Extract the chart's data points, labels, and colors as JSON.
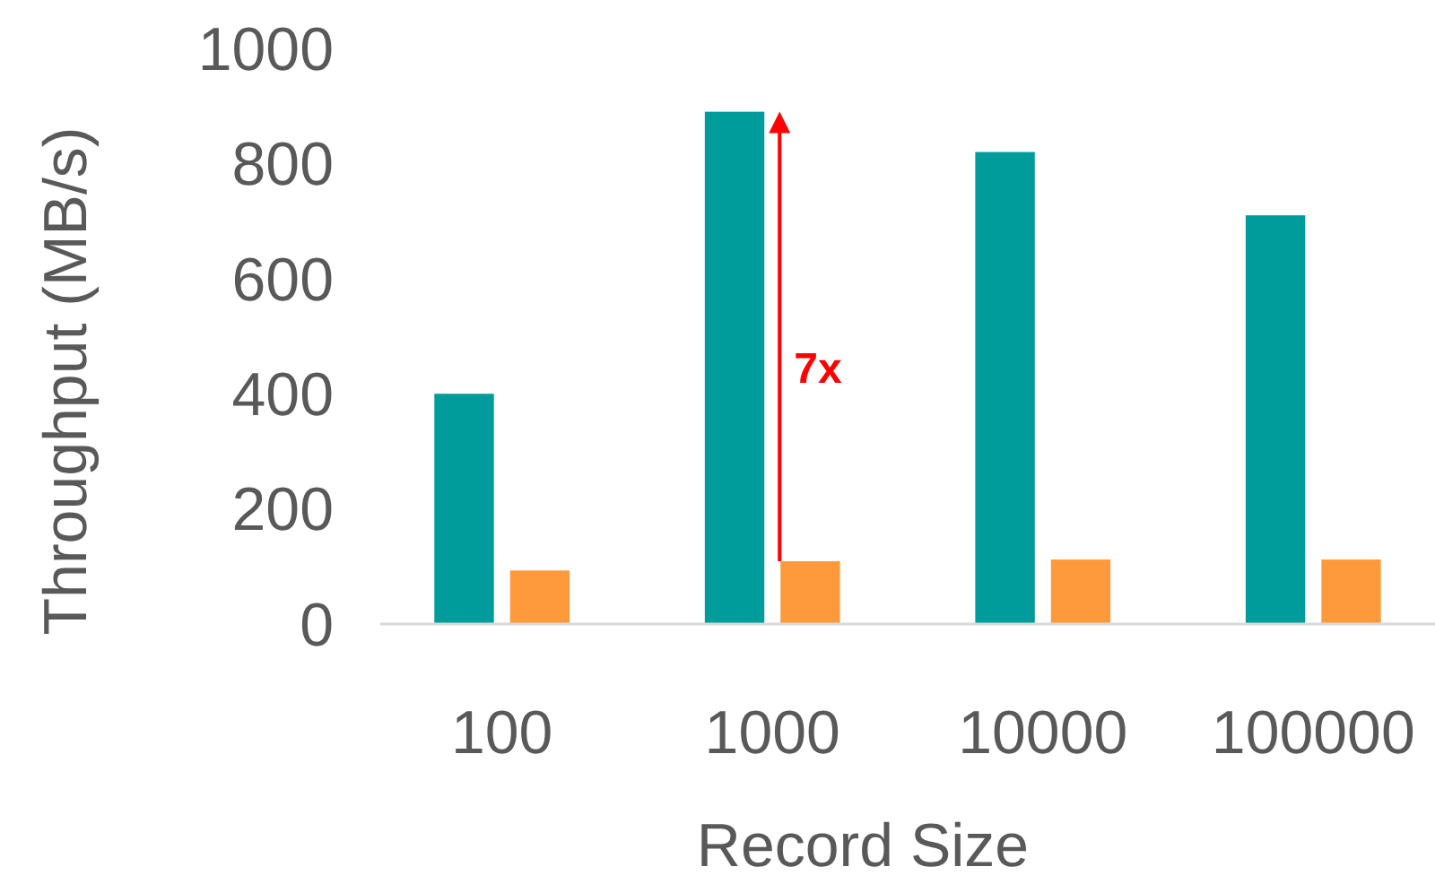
{
  "chart_data": {
    "type": "bar",
    "xlabel": "Record Size",
    "ylabel": "Throughput (MB/s)",
    "categories": [
      "100",
      "1000",
      "10000",
      "100000"
    ],
    "series": [
      {
        "color": "#009b9b",
        "values": [
          400,
          890,
          820,
          710
        ]
      },
      {
        "color": "#ff9a3c",
        "values": [
          93,
          109,
          112,
          112
        ]
      }
    ],
    "ylim": [
      0,
      1000
    ],
    "yticks": [
      0,
      200,
      400,
      600,
      800,
      1000
    ],
    "grid": false,
    "annotations": [
      {
        "text": "7x",
        "x": "1000",
        "y": 445
      }
    ]
  }
}
